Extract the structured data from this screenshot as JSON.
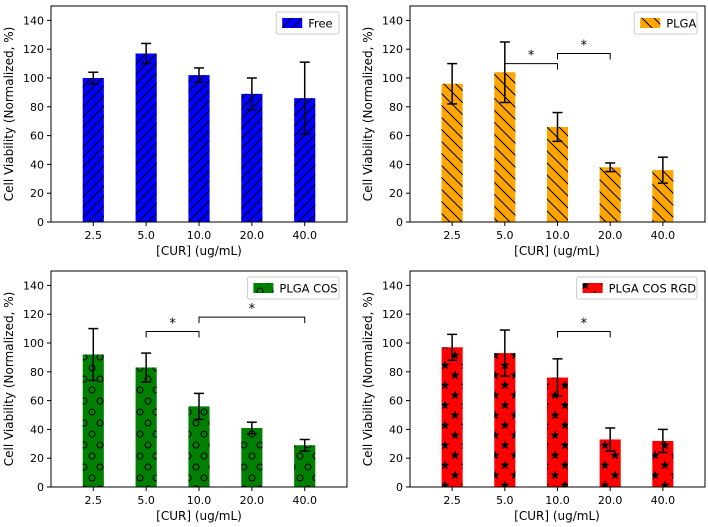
{
  "chart_data": [
    {
      "type": "bar",
      "title": "",
      "xlabel": "[CUR] (ug/mL)",
      "ylabel": "Cell Viability (Normalized, %)",
      "ylim": [
        0,
        150
      ],
      "yticks": [
        "0",
        "20",
        "40",
        "60",
        "80",
        "100",
        "120",
        "140"
      ],
      "categories": [
        "2.5",
        "5.0",
        "10.0",
        "20.0",
        "40.0"
      ],
      "series": [
        {
          "name": "Free",
          "values": [
            100,
            117,
            102,
            89,
            86
          ],
          "errors": [
            4,
            7,
            5,
            11,
            25
          ]
        }
      ],
      "color": "#0000ff",
      "hatch": "diagonal-forward",
      "legend": "top-right",
      "significance": []
    },
    {
      "type": "bar",
      "title": "",
      "xlabel": "[CUR] (ug/mL)",
      "ylabel": "Cell Viability (Normalized, %)",
      "ylim": [
        0,
        150
      ],
      "yticks": [
        "0",
        "20",
        "40",
        "60",
        "80",
        "100",
        "120",
        "140"
      ],
      "categories": [
        "2.5",
        "5.0",
        "10.0",
        "20.0",
        "40.0"
      ],
      "series": [
        {
          "name": "PLGA",
          "values": [
            96,
            104,
            66,
            38,
            36
          ],
          "errors": [
            14,
            21,
            10,
            3,
            9
          ]
        }
      ],
      "color": "#ffa500",
      "hatch": "diagonal-back",
      "legend": "top-right",
      "significance": [
        {
          "from": 1,
          "to": 2,
          "y": 110,
          "label": "*"
        },
        {
          "from": 2,
          "to": 3,
          "y": 117,
          "label": "*"
        }
      ]
    },
    {
      "type": "bar",
      "title": "",
      "xlabel": "[CUR] (ug/mL)",
      "ylabel": "Cell Viability (Normalized, %)",
      "ylim": [
        0,
        150
      ],
      "yticks": [
        "0",
        "20",
        "40",
        "60",
        "80",
        "100",
        "120",
        "140"
      ],
      "categories": [
        "2.5",
        "5.0",
        "10.0",
        "20.0",
        "40.0"
      ],
      "series": [
        {
          "name": "PLGA COS",
          "values": [
            92,
            83,
            56,
            41,
            29
          ],
          "errors": [
            18,
            10,
            9,
            4,
            4
          ]
        }
      ],
      "color": "#008000",
      "hatch": "circles",
      "legend": "top-right",
      "significance": [
        {
          "from": 1,
          "to": 2,
          "y": 108,
          "label": "*"
        },
        {
          "from": 2,
          "to": 4,
          "y": 118,
          "label": "*"
        }
      ]
    },
    {
      "type": "bar",
      "title": "",
      "xlabel": "[CUR] (ug/mL)",
      "ylabel": "Cell Viability (Normalized, %)",
      "ylim": [
        0,
        150
      ],
      "yticks": [
        "0",
        "20",
        "40",
        "60",
        "80",
        "100",
        "120",
        "140"
      ],
      "categories": [
        "2.5",
        "5.0",
        "10.0",
        "20.0",
        "40.0"
      ],
      "series": [
        {
          "name": "PLGA COS RGD",
          "values": [
            97,
            93,
            76,
            33,
            32
          ],
          "errors": [
            9,
            16,
            13,
            8,
            8
          ]
        }
      ],
      "color": "#ff0000",
      "hatch": "stars",
      "legend": "top-right",
      "significance": [
        {
          "from": 2,
          "to": 3,
          "y": 108,
          "label": "*"
        }
      ]
    }
  ]
}
